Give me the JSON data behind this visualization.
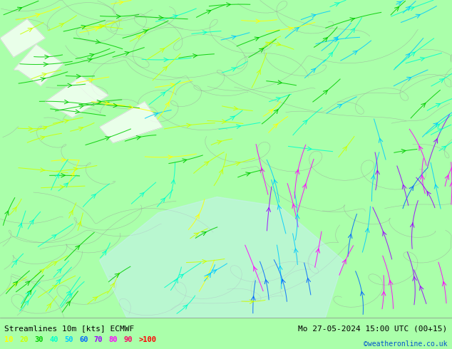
{
  "title_left": "Streamlines 10m [kts] ECMWF",
  "title_right": "Mo 27-05-2024 15:00 UTC (00+15)",
  "credit": "©weatheronline.co.uk",
  "legend_labels": [
    "10",
    "20",
    "30",
    "40",
    "50",
    "60",
    "70",
    "80",
    "90",
    ">100"
  ],
  "legend_colors": [
    "#ffff00",
    "#ccff00",
    "#00cc00",
    "#00ffcc",
    "#00ccff",
    "#0066ff",
    "#9900ff",
    "#ff00ff",
    "#ff0066",
    "#ff0000"
  ],
  "background_color": "#aaffaa",
  "land_color": "#ccffcc",
  "sea_color": "#aaddff",
  "text_color": "#000000",
  "fig_width": 6.34,
  "fig_height": 4.9,
  "dpi": 100
}
